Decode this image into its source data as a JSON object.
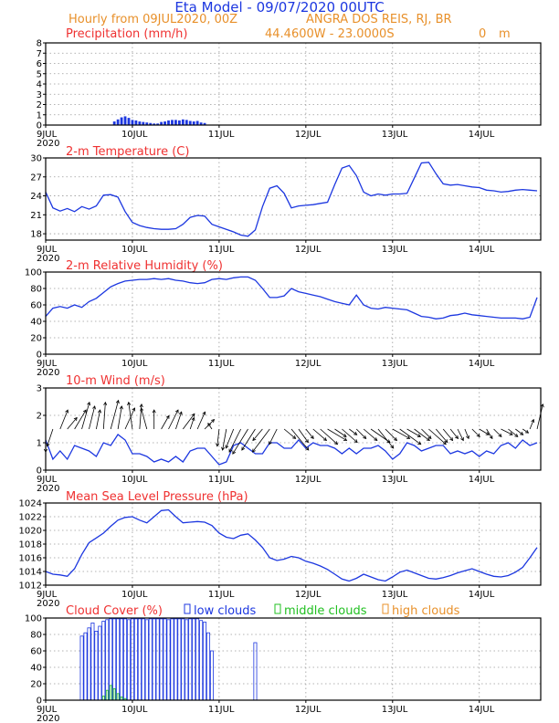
{
  "header": {
    "title": "Eta Model - 09/07/2020 00UTC",
    "subtitle_left": "Hourly from 09JUL2020, 00Z",
    "location": "ANGRA DOS REIS, RJ, BR",
    "coords": "44.4600W - 23.0000S",
    "elevation": "0",
    "elevation_unit": "m"
  },
  "x_axis": {
    "day_labels": [
      "9JUL",
      "10JUL",
      "11JUL",
      "12JUL",
      "13JUL",
      "14JUL"
    ],
    "year_label": "2020",
    "hours_total": 137
  },
  "chart_data": [
    {
      "id": "precip",
      "type": "bar",
      "title": "Precipitation (mm/h)",
      "ylim": [
        0,
        8
      ],
      "yticks": [
        0,
        1,
        2,
        3,
        4,
        5,
        6,
        7,
        8
      ],
      "x_hours": [
        19,
        20,
        21,
        22,
        23,
        24,
        25,
        26,
        27,
        28,
        29,
        30,
        31,
        32,
        33,
        34,
        35,
        36,
        37,
        38,
        39,
        40,
        41,
        42,
        43,
        44
      ],
      "values": [
        0.35,
        0.55,
        0.75,
        0.85,
        0.7,
        0.5,
        0.45,
        0.35,
        0.3,
        0.25,
        0.2,
        0.15,
        0.15,
        0.3,
        0.35,
        0.45,
        0.5,
        0.5,
        0.45,
        0.55,
        0.5,
        0.4,
        0.35,
        0.4,
        0.25,
        0.2
      ]
    },
    {
      "id": "temp",
      "type": "line",
      "title": "2-m Temperature (C)",
      "ylim": [
        17,
        30
      ],
      "yticks": [
        18,
        21,
        24,
        27,
        30
      ],
      "x": [
        0,
        2,
        4,
        6,
        8,
        10,
        12,
        14,
        16,
        18,
        20,
        22,
        24,
        26,
        28,
        30,
        32,
        34,
        36,
        38,
        40,
        42,
        44,
        46,
        48,
        50,
        52,
        54,
        56,
        58,
        60,
        62,
        64,
        66,
        68,
        70,
        72,
        74,
        76,
        78,
        80,
        82,
        84,
        86,
        88,
        90,
        92,
        94,
        96,
        98,
        100,
        102,
        104,
        106,
        108,
        110,
        112,
        114,
        116,
        118,
        120,
        122,
        124,
        126,
        128,
        130,
        132,
        134,
        136
      ],
      "values": [
        24.6,
        22.1,
        21.6,
        22.0,
        21.5,
        22.3,
        21.9,
        22.4,
        24.1,
        24.2,
        23.8,
        21.5,
        19.8,
        19.3,
        19.0,
        18.8,
        18.7,
        18.7,
        18.8,
        19.5,
        20.6,
        20.9,
        20.8,
        19.5,
        19.1,
        18.7,
        18.3,
        17.8,
        17.6,
        18.6,
        22.3,
        25.2,
        25.6,
        24.4,
        22.1,
        22.4,
        22.5,
        22.6,
        22.8,
        23.0,
        25.8,
        28.4,
        28.8,
        27.2,
        24.6,
        24.0,
        24.3,
        24.1,
        24.3,
        24.3,
        24.4,
        26.8,
        29.2,
        29.3,
        27.5,
        25.9,
        25.7,
        25.8,
        25.6,
        25.4,
        25.3,
        24.9,
        24.8,
        24.6,
        24.7,
        24.9,
        25.0,
        24.9,
        24.8
      ]
    },
    {
      "id": "rh",
      "type": "line",
      "title": "2-m Relative Humidity (%)",
      "ylim": [
        0,
        100
      ],
      "yticks": [
        0,
        20,
        40,
        60,
        80,
        100
      ],
      "x": [
        0,
        2,
        4,
        6,
        8,
        10,
        12,
        14,
        16,
        18,
        20,
        22,
        24,
        26,
        28,
        30,
        32,
        34,
        36,
        38,
        40,
        42,
        44,
        46,
        48,
        50,
        52,
        54,
        56,
        58,
        60,
        62,
        64,
        66,
        68,
        70,
        72,
        74,
        76,
        78,
        80,
        82,
        84,
        86,
        88,
        90,
        92,
        94,
        96,
        98,
        100,
        102,
        104,
        106,
        108,
        110,
        112,
        114,
        116,
        118,
        120,
        122,
        124,
        126,
        128,
        130,
        132,
        134,
        136
      ],
      "values": [
        46,
        56,
        58,
        56,
        60,
        57,
        64,
        68,
        75,
        82,
        86,
        89,
        90,
        91,
        91,
        92,
        91,
        92,
        90,
        89,
        87,
        86,
        87,
        91,
        92,
        91,
        93,
        94,
        94,
        90,
        80,
        69,
        69,
        71,
        80,
        76,
        74,
        72,
        70,
        67,
        64,
        62,
        60,
        72,
        60,
        56,
        55,
        57,
        56,
        55,
        54,
        50,
        46,
        45,
        43,
        44,
        47,
        48,
        50,
        48,
        47,
        46,
        45,
        44,
        44,
        44,
        43,
        45,
        69
      ]
    },
    {
      "id": "wind",
      "type": "line",
      "title": "10-m Wind (m/s)",
      "ylim": [
        0,
        3
      ],
      "yticks": [
        0,
        1,
        2,
        3
      ],
      "x": [
        0,
        2,
        4,
        6,
        8,
        10,
        12,
        14,
        16,
        18,
        20,
        22,
        24,
        26,
        28,
        30,
        32,
        34,
        36,
        38,
        40,
        42,
        44,
        46,
        48,
        50,
        52,
        54,
        56,
        58,
        60,
        62,
        64,
        66,
        68,
        70,
        72,
        74,
        76,
        78,
        80,
        82,
        84,
        86,
        88,
        90,
        92,
        94,
        96,
        98,
        100,
        102,
        104,
        106,
        108,
        110,
        112,
        114,
        116,
        118,
        120,
        122,
        124,
        126,
        128,
        130,
        132,
        134,
        136
      ],
      "values": [
        1.1,
        0.4,
        0.7,
        0.4,
        0.9,
        0.8,
        0.7,
        0.5,
        1.0,
        0.9,
        1.3,
        1.1,
        0.6,
        0.6,
        0.5,
        0.3,
        0.4,
        0.3,
        0.5,
        0.3,
        0.7,
        0.8,
        0.8,
        0.5,
        0.2,
        0.3,
        0.9,
        1.0,
        0.8,
        0.6,
        0.6,
        1.0,
        1.0,
        0.8,
        0.8,
        1.1,
        0.8,
        1.0,
        0.9,
        0.9,
        0.8,
        0.6,
        0.8,
        0.6,
        0.8,
        0.8,
        0.9,
        0.7,
        0.4,
        0.6,
        1.0,
        0.9,
        0.7,
        0.8,
        0.9,
        0.9,
        0.6,
        0.7,
        0.6,
        0.7,
        0.5,
        0.7,
        0.6,
        0.9,
        1.0,
        0.8,
        1.1,
        0.9,
        1.0
      ],
      "vectors": [
        {
          "h": 0,
          "u": 0.0,
          "v": -1.2
        },
        {
          "h": 2,
          "u": -0.3,
          "v": -0.9
        },
        {
          "h": 4,
          "u": 0.4,
          "v": 1.0
        },
        {
          "h": 6,
          "u": 0.5,
          "v": 0.6
        },
        {
          "h": 8,
          "u": 0.6,
          "v": 1.0
        },
        {
          "h": 10,
          "u": 0.4,
          "v": 1.4
        },
        {
          "h": 12,
          "u": 0.3,
          "v": 1.2
        },
        {
          "h": 14,
          "u": 0.2,
          "v": 1.0
        },
        {
          "h": 16,
          "u": 0.1,
          "v": 1.4
        },
        {
          "h": 18,
          "u": 0.4,
          "v": 1.5
        },
        {
          "h": 20,
          "u": 0.2,
          "v": 1.2
        },
        {
          "h": 22,
          "u": 0.5,
          "v": 1.1
        },
        {
          "h": 24,
          "u": -0.2,
          "v": 1.4
        },
        {
          "h": 26,
          "u": 0.1,
          "v": 1.3
        },
        {
          "h": 28,
          "u": -0.3,
          "v": 1.1
        },
        {
          "h": 30,
          "u": 0.0,
          "v": 1.0
        },
        {
          "h": 32,
          "u": 0.4,
          "v": 0.7
        },
        {
          "h": 34,
          "u": 0.5,
          "v": 1.0
        },
        {
          "h": 36,
          "u": 0.3,
          "v": 0.9
        },
        {
          "h": 38,
          "u": 0.6,
          "v": 0.8
        },
        {
          "h": 40,
          "u": 0.2,
          "v": 0.6
        },
        {
          "h": 42,
          "u": 0.4,
          "v": 0.9
        },
        {
          "h": 44,
          "u": 0.5,
          "v": 0.5
        },
        {
          "h": 46,
          "u": -0.2,
          "v": 0.3
        },
        {
          "h": 48,
          "u": -0.1,
          "v": -0.9
        },
        {
          "h": 50,
          "u": -0.2,
          "v": -1.1
        },
        {
          "h": 52,
          "u": -0.4,
          "v": -1.0
        },
        {
          "h": 54,
          "u": -0.6,
          "v": -1.2
        },
        {
          "h": 56,
          "u": -0.8,
          "v": -1.3
        },
        {
          "h": 58,
          "u": -0.7,
          "v": -1.1
        },
        {
          "h": 60,
          "u": -0.5,
          "v": -0.6
        },
        {
          "h": 62,
          "u": -0.9,
          "v": -1.2
        },
        {
          "h": 64,
          "u": -0.4,
          "v": -0.8
        },
        {
          "h": 66,
          "u": 0.6,
          "v": -0.5
        },
        {
          "h": 68,
          "u": 0.9,
          "v": -1.1
        },
        {
          "h": 70,
          "u": 0.5,
          "v": -0.7
        },
        {
          "h": 72,
          "u": 0.4,
          "v": -0.5
        },
        {
          "h": 74,
          "u": 0.7,
          "v": -0.6
        },
        {
          "h": 76,
          "u": 0.9,
          "v": -0.8
        },
        {
          "h": 78,
          "u": 1.0,
          "v": -0.6
        },
        {
          "h": 80,
          "u": 0.6,
          "v": -0.4
        },
        {
          "h": 82,
          "u": 0.8,
          "v": -0.7
        },
        {
          "h": 84,
          "u": 0.4,
          "v": -0.3
        },
        {
          "h": 86,
          "u": 0.5,
          "v": -0.5
        },
        {
          "h": 88,
          "u": 0.7,
          "v": -0.6
        },
        {
          "h": 90,
          "u": 1.0,
          "v": -0.7
        },
        {
          "h": 92,
          "u": 0.8,
          "v": -1.0
        },
        {
          "h": 94,
          "u": 0.6,
          "v": -0.6
        },
        {
          "h": 96,
          "u": 0.9,
          "v": -0.5
        },
        {
          "h": 98,
          "u": 1.1,
          "v": -0.8
        },
        {
          "h": 100,
          "u": 0.7,
          "v": -0.4
        },
        {
          "h": 102,
          "u": 0.8,
          "v": -0.6
        },
        {
          "h": 104,
          "u": 0.5,
          "v": -0.5
        },
        {
          "h": 106,
          "u": 0.9,
          "v": -0.8
        },
        {
          "h": 108,
          "u": 0.6,
          "v": -0.7
        },
        {
          "h": 110,
          "u": 0.5,
          "v": -0.6
        },
        {
          "h": 112,
          "u": 0.4,
          "v": -0.5
        },
        {
          "h": 114,
          "u": 0.3,
          "v": -0.6
        },
        {
          "h": 116,
          "u": 0.2,
          "v": -0.5
        },
        {
          "h": 118,
          "u": 0.4,
          "v": -0.4
        },
        {
          "h": 120,
          "u": 0.5,
          "v": -0.3
        },
        {
          "h": 122,
          "u": 0.3,
          "v": -0.5
        },
        {
          "h": 124,
          "u": 0.4,
          "v": -0.4
        },
        {
          "h": 126,
          "u": 0.6,
          "v": -0.3
        },
        {
          "h": 128,
          "u": 0.5,
          "v": -0.4
        },
        {
          "h": 130,
          "u": 0.4,
          "v": -0.3
        },
        {
          "h": 132,
          "u": 0.3,
          "v": -0.2
        },
        {
          "h": 134,
          "u": 0.2,
          "v": 0.5
        },
        {
          "h": 136,
          "u": 0.3,
          "v": 1.3
        }
      ]
    },
    {
      "id": "mslp",
      "type": "line",
      "title": "Mean Sea Level Pressure (hPa)",
      "ylim": [
        1012,
        1024
      ],
      "yticks": [
        1012,
        1014,
        1016,
        1018,
        1020,
        1022,
        1024
      ],
      "x": [
        0,
        2,
        4,
        6,
        8,
        10,
        12,
        14,
        16,
        18,
        20,
        22,
        24,
        26,
        28,
        30,
        32,
        34,
        36,
        38,
        40,
        42,
        44,
        46,
        48,
        50,
        52,
        54,
        56,
        58,
        60,
        62,
        64,
        66,
        68,
        70,
        72,
        74,
        76,
        78,
        80,
        82,
        84,
        86,
        88,
        90,
        92,
        94,
        96,
        98,
        100,
        102,
        104,
        106,
        108,
        110,
        112,
        114,
        116,
        118,
        120,
        122,
        124,
        126,
        128,
        130,
        132,
        134,
        136
      ],
      "values": [
        1014.0,
        1013.6,
        1013.5,
        1013.3,
        1014.4,
        1016.5,
        1018.2,
        1018.9,
        1019.6,
        1020.6,
        1021.5,
        1021.9,
        1022.0,
        1021.5,
        1021.1,
        1022.0,
        1022.9,
        1023.0,
        1022.0,
        1021.1,
        1021.2,
        1021.3,
        1021.2,
        1020.7,
        1019.6,
        1019.0,
        1018.8,
        1019.3,
        1019.5,
        1018.6,
        1017.5,
        1016.0,
        1015.6,
        1015.8,
        1016.2,
        1016.0,
        1015.5,
        1015.2,
        1014.8,
        1014.3,
        1013.6,
        1012.9,
        1012.6,
        1013.0,
        1013.6,
        1013.2,
        1012.8,
        1012.6,
        1013.2,
        1013.9,
        1014.2,
        1013.8,
        1013.4,
        1013.0,
        1012.9,
        1013.1,
        1013.4,
        1013.8,
        1014.1,
        1014.4,
        1014.0,
        1013.6,
        1013.3,
        1013.2,
        1013.4,
        1013.9,
        1014.6,
        1016.0,
        1017.5
      ]
    },
    {
      "id": "cloud",
      "type": "bar",
      "title": "Cloud Cover (%)",
      "legend": [
        "low clouds",
        "middle clouds",
        "high clouds"
      ],
      "ylim": [
        0,
        100
      ],
      "yticks": [
        0,
        20,
        40,
        60,
        80,
        100
      ],
      "x_hours": [
        10,
        11,
        12,
        13,
        14,
        15,
        16,
        17,
        18,
        19,
        20,
        21,
        22,
        23,
        24,
        25,
        26,
        27,
        28,
        29,
        30,
        31,
        32,
        33,
        34,
        35,
        36,
        37,
        38,
        39,
        40,
        41,
        42,
        43,
        44,
        45,
        46,
        58
      ],
      "low": [
        78,
        82,
        88,
        94,
        84,
        90,
        96,
        98,
        99,
        99,
        99,
        99,
        99,
        98,
        99,
        99,
        99,
        99,
        98,
        99,
        99,
        99,
        99,
        99,
        98,
        99,
        99,
        99,
        99,
        98,
        99,
        99,
        99,
        97,
        95,
        82,
        60,
        70
      ],
      "middle": [
        0,
        0,
        0,
        0,
        0,
        0,
        5,
        12,
        18,
        14,
        8,
        4,
        2,
        0,
        0,
        0,
        0,
        0,
        0,
        0,
        0,
        0,
        0,
        0,
        0,
        0,
        0,
        0,
        0,
        0,
        0,
        0,
        0,
        0,
        0,
        0,
        0,
        0
      ]
    }
  ]
}
